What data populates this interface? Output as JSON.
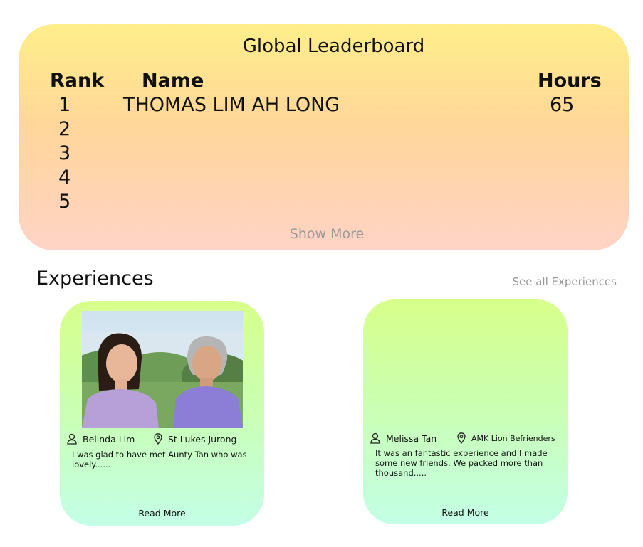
{
  "leaderboard": {
    "title": "Global Leaderboard",
    "columns": {
      "rank": "Rank",
      "name": "Name",
      "hours": "Hours"
    },
    "rows": [
      {
        "rank": "1",
        "name": "THOMAS LIM AH LONG",
        "hours": "65"
      },
      {
        "rank": "2",
        "name": "",
        "hours": ""
      },
      {
        "rank": "3",
        "name": "",
        "hours": ""
      },
      {
        "rank": "4",
        "name": "",
        "hours": ""
      },
      {
        "rank": "5",
        "name": "",
        "hours": ""
      }
    ],
    "show_more": "Show More"
  },
  "experiences": {
    "title": "Experiences",
    "see_all": "See all Experiences",
    "cards": [
      {
        "author": "Belinda Lim",
        "location": "St Lukes Jurong",
        "excerpt_lines": [
          "I was glad to have met Aunty Tan who was",
          "lovely......"
        ],
        "read_more": "Read More",
        "has_photo": true,
        "icons": [
          "user-icon",
          "location-pin-icon"
        ]
      },
      {
        "author": "Melissa Tan",
        "location": "AMK Lion Befrienders",
        "excerpt_lines": [
          "It was an fantastic experience and I made",
          "some new friends. We packed more than",
          "thousand....."
        ],
        "read_more": "Read More",
        "has_photo": false,
        "icons": [
          "user-icon",
          "location-pin-icon"
        ]
      }
    ]
  },
  "colors": {
    "leaderboard_gradient": [
      "#ffee8a",
      "#ffd3c6"
    ],
    "card_gradient": [
      "#d7ff8a",
      "#c3ffe7"
    ],
    "muted_text": "#9a9a9a"
  }
}
